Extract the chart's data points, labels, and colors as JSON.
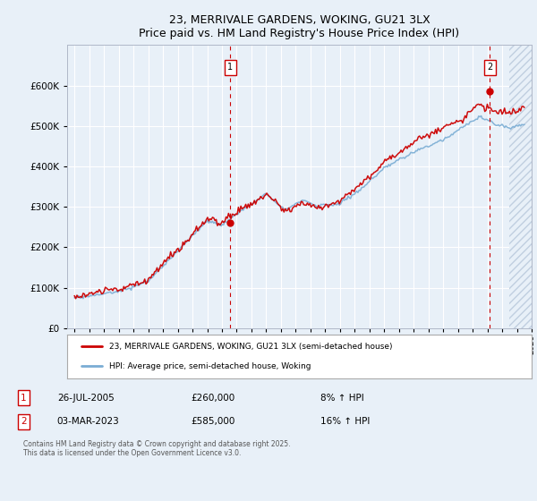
{
  "title": "23, MERRIVALE GARDENS, WOKING, GU21 3LX",
  "subtitle": "Price paid vs. HM Land Registry's House Price Index (HPI)",
  "ylim": [
    0,
    700000
  ],
  "yticks": [
    0,
    100000,
    200000,
    300000,
    400000,
    500000,
    600000
  ],
  "background_color": "#e8f0f8",
  "plot_bg_color": "#e8f0f8",
  "grid_color": "#ffffff",
  "line_color_red": "#cc0000",
  "line_color_blue": "#7aadd4",
  "dashed_line_color": "#cc0000",
  "legend_label_red": "23, MERRIVALE GARDENS, WOKING, GU21 3LX (semi-detached house)",
  "legend_label_blue": "HPI: Average price, semi-detached house, Woking",
  "marker1_x_year": 2005.57,
  "marker1_y": 260000,
  "marker1_label": "1",
  "marker2_x_year": 2023.17,
  "marker2_y": 585000,
  "marker2_label": "2",
  "note1_date": "26-JUL-2005",
  "note1_price": "£260,000",
  "note1_hpi": "8% ↑ HPI",
  "note2_date": "03-MAR-2023",
  "note2_price": "£585,000",
  "note2_hpi": "16% ↑ HPI",
  "footer": "Contains HM Land Registry data © Crown copyright and database right 2025.\nThis data is licensed under the Open Government Licence v3.0.",
  "xmin": 1994.5,
  "xmax": 2026.0,
  "hatch_start": 2024.5,
  "hatch_end": 2026.5
}
